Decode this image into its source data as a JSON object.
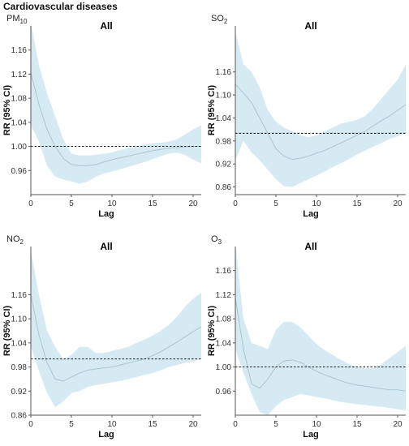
{
  "figure": {
    "title": "Cardiovascular diseases"
  },
  "colors": {
    "band": "#d6eaf3",
    "line": "#a9c6d3",
    "axis": "#555555",
    "reference": "#000000"
  },
  "chart_data": [
    {
      "type": "line",
      "pollutant": "PM",
      "pollutant_sub": "10",
      "title": "All",
      "xlabel": "Lag",
      "ylabel": "RR (95% CI)",
      "xlim": [
        0,
        21
      ],
      "xticks": [
        0,
        5,
        10,
        15,
        20
      ],
      "ylim": [
        0.92,
        1.2
      ],
      "yticks": [
        0.96,
        1.0,
        1.04,
        1.08,
        1.12,
        1.16
      ],
      "reference_line": 1.0,
      "x": [
        0,
        1,
        2,
        3,
        4,
        5,
        6,
        7,
        8,
        9,
        10,
        11,
        12,
        13,
        14,
        15,
        16,
        17,
        18,
        19,
        20,
        21
      ],
      "rr": [
        1.122,
        1.07,
        1.028,
        1.0,
        0.98,
        0.97,
        0.968,
        0.968,
        0.97,
        0.974,
        0.978,
        0.981,
        0.984,
        0.987,
        0.99,
        0.993,
        0.995,
        0.997,
        0.998,
        0.999,
        1.0,
        1.0
      ],
      "lower": [
        1.035,
        1.008,
        0.968,
        0.95,
        0.945,
        0.942,
        0.938,
        0.942,
        0.95,
        0.955,
        0.958,
        0.962,
        0.966,
        0.97,
        0.974,
        0.979,
        0.984,
        0.988,
        0.99,
        0.986,
        0.978,
        0.972
      ],
      "upper": [
        1.205,
        1.135,
        1.088,
        1.05,
        1.012,
        0.988,
        0.985,
        0.985,
        0.986,
        0.988,
        0.99,
        0.994,
        0.997,
        1.0,
        1.003,
        1.005,
        1.006,
        1.008,
        1.012,
        1.02,
        1.028,
        1.035
      ]
    },
    {
      "type": "line",
      "pollutant": "SO",
      "pollutant_sub": "2",
      "title": "All",
      "xlabel": "Lag",
      "ylabel": "RR (95% CI)",
      "xlim": [
        0,
        21
      ],
      "xticks": [
        0,
        5,
        10,
        15,
        20
      ],
      "ylim": [
        0.84,
        1.28
      ],
      "yticks": [
        0.86,
        0.92,
        0.98,
        1.04,
        1.1,
        1.16
      ],
      "reference_line": 1.0,
      "x": [
        0,
        1,
        2,
        3,
        4,
        5,
        6,
        7,
        8,
        9,
        10,
        11,
        12,
        13,
        14,
        15,
        16,
        17,
        18,
        19,
        20,
        21
      ],
      "rr": [
        1.128,
        1.105,
        1.08,
        1.04,
        1.0,
        0.96,
        0.94,
        0.932,
        0.935,
        0.94,
        0.948,
        0.955,
        0.965,
        0.975,
        0.985,
        0.995,
        1.005,
        1.02,
        1.033,
        1.045,
        1.06,
        1.075
      ],
      "lower": [
        0.93,
        0.98,
        0.95,
        0.93,
        0.905,
        0.88,
        0.862,
        0.86,
        0.87,
        0.88,
        0.89,
        0.9,
        0.912,
        0.922,
        0.932,
        0.945,
        0.955,
        0.965,
        0.975,
        0.985,
        0.992,
        1.0
      ],
      "upper": [
        1.265,
        1.18,
        1.16,
        1.12,
        1.06,
        1.03,
        1.015,
        1.005,
        0.995,
        0.99,
        0.995,
        1.005,
        1.015,
        1.025,
        1.03,
        1.035,
        1.045,
        1.065,
        1.09,
        1.115,
        1.14,
        1.18
      ]
    },
    {
      "type": "line",
      "pollutant": "NO",
      "pollutant_sub": "2",
      "title": "All",
      "xlabel": "Lag",
      "ylabel": "RR (95% CI)",
      "xlim": [
        0,
        21
      ],
      "xticks": [
        0,
        5,
        10,
        15,
        20
      ],
      "ylim": [
        0.86,
        1.28
      ],
      "yticks": [
        0.86,
        0.92,
        0.98,
        1.04,
        1.1,
        1.16
      ],
      "reference_line": 1.0,
      "x": [
        0,
        1,
        2,
        3,
        4,
        5,
        6,
        7,
        8,
        9,
        10,
        11,
        12,
        13,
        14,
        15,
        16,
        17,
        18,
        19,
        20,
        21
      ],
      "rr": [
        1.16,
        1.06,
        0.99,
        0.95,
        0.945,
        0.955,
        0.965,
        0.972,
        0.975,
        0.978,
        0.98,
        0.985,
        0.99,
        0.995,
        1.0,
        1.008,
        1.018,
        1.03,
        1.042,
        1.055,
        1.068,
        1.08
      ],
      "lower": [
        1.03,
        0.97,
        0.915,
        0.88,
        0.895,
        0.915,
        0.92,
        0.93,
        0.935,
        0.938,
        0.942,
        0.945,
        0.95,
        0.955,
        0.96,
        0.965,
        0.972,
        0.98,
        0.985,
        0.99,
        0.995,
        1.0
      ],
      "upper": [
        1.27,
        1.16,
        1.07,
        1.03,
        1.0,
        1.01,
        1.03,
        1.03,
        1.015,
        1.015,
        1.02,
        1.025,
        1.03,
        1.04,
        1.048,
        1.058,
        1.07,
        1.085,
        1.105,
        1.13,
        1.15,
        1.165
      ]
    },
    {
      "type": "line",
      "pollutant": "O",
      "pollutant_sub": "3",
      "title": "All",
      "xlabel": "Lag",
      "ylabel": "RR (95% CI)",
      "xlim": [
        0,
        21
      ],
      "xticks": [
        0,
        5,
        10,
        15,
        20
      ],
      "ylim": [
        0.92,
        1.2
      ],
      "yticks": [
        0.96,
        1.0,
        1.04,
        1.08,
        1.12,
        1.16
      ],
      "reference_line": 1.0,
      "x": [
        0,
        1,
        2,
        3,
        4,
        5,
        6,
        7,
        8,
        9,
        10,
        11,
        12,
        13,
        14,
        15,
        16,
        17,
        18,
        19,
        20,
        21
      ],
      "rr": [
        1.115,
        1.03,
        0.972,
        0.965,
        0.98,
        1.0,
        1.01,
        1.012,
        1.008,
        1.0,
        0.993,
        0.987,
        0.982,
        0.977,
        0.973,
        0.97,
        0.968,
        0.966,
        0.964,
        0.962,
        0.962,
        0.96
      ],
      "lower": [
        1.03,
        0.99,
        0.955,
        0.925,
        0.92,
        0.935,
        0.945,
        0.95,
        0.955,
        0.953,
        0.95,
        0.948,
        0.945,
        0.942,
        0.94,
        0.938,
        0.937,
        0.935,
        0.934,
        0.932,
        0.93,
        0.928
      ],
      "upper": [
        1.205,
        1.08,
        1.04,
        1.035,
        1.03,
        1.062,
        1.075,
        1.075,
        1.066,
        1.052,
        1.038,
        1.028,
        1.02,
        1.012,
        1.005,
        1.0,
        0.998,
        0.998,
        1.005,
        1.015,
        1.025,
        1.035
      ]
    }
  ]
}
